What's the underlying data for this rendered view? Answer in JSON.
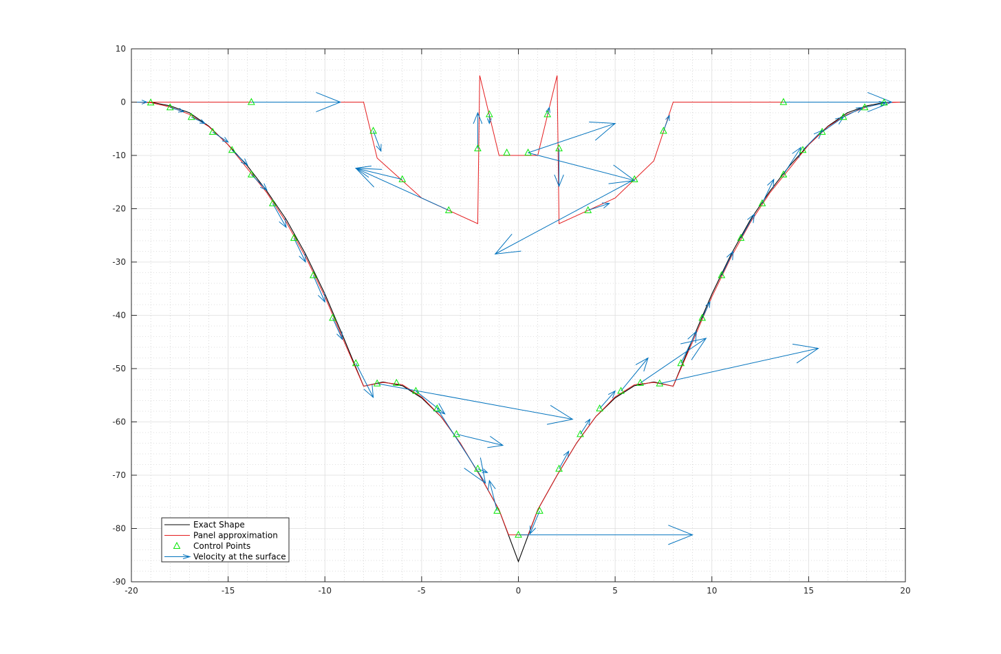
{
  "chart_data": {
    "type": "line",
    "title": "",
    "xlabel": "",
    "ylabel": "",
    "xlim": [
      -20,
      20
    ],
    "ylim": [
      -90,
      10
    ],
    "xticks": [
      -20,
      -15,
      -10,
      -5,
      0,
      5,
      10,
      15,
      20
    ],
    "yticks": [
      10,
      0,
      -10,
      -20,
      -30,
      -40,
      -50,
      -60,
      -70,
      -80,
      -90
    ],
    "grid": true,
    "minor_grid": true,
    "legend_position": "bottom-left",
    "colors": {
      "exact": "#000000",
      "panel": "#e41a1c",
      "control": "#00e600",
      "velocity": "#0072bd",
      "grid_major": "#dcdcdc",
      "grid_minor": "#bdbdbd"
    },
    "series": [
      {
        "name": "Exact Shape",
        "points": [
          [
            -20,
            0
          ],
          [
            -19,
            0
          ],
          [
            -18,
            -0.7
          ],
          [
            -17,
            -2
          ],
          [
            -16,
            -4.5
          ],
          [
            -15,
            -8
          ],
          [
            -14,
            -12
          ],
          [
            -13,
            -16.7
          ],
          [
            -12,
            -22
          ],
          [
            -11,
            -28.5
          ],
          [
            -10,
            -36
          ],
          [
            -9,
            -44.5
          ],
          [
            -8,
            -53.3
          ],
          [
            -7,
            -52.5
          ],
          [
            -6,
            -53.2
          ],
          [
            -5,
            -55.5
          ],
          [
            -4,
            -59
          ],
          [
            -3,
            -64
          ],
          [
            -2,
            -70
          ],
          [
            -1,
            -76.5
          ],
          [
            0,
            -86.2
          ],
          [
            1,
            -76.5
          ],
          [
            2,
            -70
          ],
          [
            3,
            -64
          ],
          [
            4,
            -59
          ],
          [
            5,
            -55.5
          ],
          [
            6,
            -53.2
          ],
          [
            7,
            -52.5
          ],
          [
            8,
            -53.3
          ],
          [
            9,
            -44.5
          ],
          [
            10,
            -36
          ],
          [
            11,
            -28.5
          ],
          [
            12,
            -22
          ],
          [
            13,
            -16.7
          ],
          [
            14,
            -12
          ],
          [
            15,
            -8
          ],
          [
            16,
            -4.5
          ],
          [
            17,
            -2
          ],
          [
            18,
            -0.7
          ],
          [
            19,
            0
          ],
          [
            20,
            0
          ]
        ]
      },
      {
        "name": "Panel approximation",
        "points": [
          [
            -19.8,
            0
          ],
          [
            -8,
            0
          ],
          [
            -7.3,
            -10.5
          ],
          [
            -5,
            -18
          ],
          [
            -2.1,
            -22.8
          ],
          [
            -2,
            5
          ],
          [
            -1,
            -10
          ],
          [
            1,
            -10
          ],
          [
            2,
            5
          ],
          [
            2.1,
            -22.8
          ],
          [
            5,
            -18
          ],
          [
            7,
            -11
          ],
          [
            8,
            0
          ],
          [
            19.8,
            0
          ]
        ],
        "bottom_points": [
          [
            -19.8,
            0
          ],
          [
            -19,
            -0.1
          ],
          [
            -18,
            -0.9
          ],
          [
            -17,
            -2.3
          ],
          [
            -16,
            -4.6
          ],
          [
            -15,
            -8
          ],
          [
            -14,
            -12.5
          ],
          [
            -13,
            -17
          ],
          [
            -12,
            -22.5
          ],
          [
            -11,
            -29
          ],
          [
            -10,
            -36.5
          ],
          [
            -9,
            -45
          ],
          [
            -8,
            -53.3
          ],
          [
            -7,
            -52.6
          ],
          [
            -6,
            -53
          ],
          [
            -5,
            -55.3
          ],
          [
            -4,
            -59
          ],
          [
            -3,
            -64
          ],
          [
            -2,
            -70
          ],
          [
            -1,
            -76.5
          ],
          [
            -0.5,
            -81.2
          ],
          [
            0.5,
            -81.2
          ],
          [
            1,
            -76.5
          ],
          [
            2,
            -70
          ],
          [
            3,
            -64
          ],
          [
            4,
            -59
          ],
          [
            5,
            -55.3
          ],
          [
            6,
            -53
          ],
          [
            7,
            -52.6
          ],
          [
            8,
            -53.3
          ],
          [
            9,
            -45
          ],
          [
            10,
            -36.5
          ],
          [
            11,
            -29
          ],
          [
            12,
            -22.5
          ],
          [
            13,
            -17
          ],
          [
            14,
            -12.5
          ],
          [
            15,
            -8
          ],
          [
            16,
            -4.6
          ],
          [
            17,
            -2.3
          ],
          [
            18,
            -0.9
          ],
          [
            19,
            -0.1
          ],
          [
            19.8,
            0
          ]
        ]
      },
      {
        "name": "Control Points",
        "points": [
          [
            -19,
            -0.1
          ],
          [
            -18,
            -1
          ],
          [
            -16.9,
            -2.8
          ],
          [
            -15.8,
            -5.6
          ],
          [
            -14.8,
            -9
          ],
          [
            -13.8,
            -13.6
          ],
          [
            -12.7,
            -19
          ],
          [
            -11.6,
            -25.5
          ],
          [
            -10.6,
            -32.5
          ],
          [
            -9.6,
            -40.5
          ],
          [
            -8.4,
            -49
          ],
          [
            -7.5,
            -5.4
          ],
          [
            -7.3,
            -52.8
          ],
          [
            -6.3,
            -52.7
          ],
          [
            -6,
            -14.5
          ],
          [
            -5.3,
            -54.2
          ],
          [
            -4.2,
            -57.5
          ],
          [
            -3.6,
            -20.3
          ],
          [
            -3.2,
            -62.3
          ],
          [
            -2.1,
            -68.8
          ],
          [
            -2.1,
            -8.7
          ],
          [
            -1.5,
            -2.3
          ],
          [
            -1.1,
            -76.7
          ],
          [
            -0.6,
            -9.5
          ],
          [
            0,
            -81.2
          ],
          [
            0.5,
            -9.5
          ],
          [
            1.1,
            -76.7
          ],
          [
            1.5,
            -2.3
          ],
          [
            2.1,
            -68.8
          ],
          [
            2.1,
            -8.7
          ],
          [
            3.2,
            -62.3
          ],
          [
            3.6,
            -20.3
          ],
          [
            4.2,
            -57.5
          ],
          [
            5.3,
            -54.2
          ],
          [
            6,
            -14.5
          ],
          [
            6.3,
            -52.7
          ],
          [
            7.3,
            -52.8
          ],
          [
            7.5,
            -5.4
          ],
          [
            8.4,
            -49
          ],
          [
            9.5,
            -40.5
          ],
          [
            10.5,
            -32.5
          ],
          [
            11.5,
            -25.5
          ],
          [
            12.6,
            -19
          ],
          [
            13.7,
            -13.6
          ],
          [
            13.7,
            0
          ],
          [
            14.7,
            -9
          ],
          [
            15.7,
            -5.6
          ],
          [
            16.8,
            -2.8
          ],
          [
            17.9,
            -1
          ],
          [
            18.9,
            -0.1
          ],
          [
            -13.8,
            0
          ]
        ]
      },
      {
        "name": "Velocity at the surface",
        "vectors": [
          [
            -19.8,
            0,
            -19.2,
            0
          ],
          [
            -13.8,
            0,
            -9.2,
            0
          ],
          [
            -18,
            -1,
            -17.3,
            -1.8
          ],
          [
            -16.9,
            -2.8,
            -16.2,
            -4
          ],
          [
            -15.8,
            -5.6,
            -15,
            -7.5
          ],
          [
            -14.8,
            -9,
            -14,
            -11.8
          ],
          [
            -13.8,
            -13.6,
            -13,
            -16.5
          ],
          [
            -12.7,
            -19,
            -12,
            -23.5
          ],
          [
            -11.6,
            -25.5,
            -11,
            -30
          ],
          [
            -10.6,
            -32.5,
            -10,
            -37.5
          ],
          [
            -9.6,
            -40.5,
            -9.1,
            -44.5
          ],
          [
            -8.4,
            -49,
            -7.5,
            -55.4
          ],
          [
            -7.3,
            -52.8,
            2.8,
            -59.5
          ],
          [
            -5.3,
            -54.2,
            -3.8,
            -58.5
          ],
          [
            -4.2,
            -57.5,
            -1.7,
            -71.5
          ],
          [
            -3.2,
            -62.3,
            -0.8,
            -64.4
          ],
          [
            -2.1,
            -68.8,
            -1.6,
            -69.5
          ],
          [
            -1.1,
            -76.7,
            -1.5,
            -71
          ],
          [
            0,
            -81.2,
            9,
            -81.2
          ],
          [
            1.1,
            -76.7,
            0.6,
            -81
          ],
          [
            2.1,
            -68.8,
            2.6,
            -65.5
          ],
          [
            3.2,
            -62.3,
            3.7,
            -59.5
          ],
          [
            4.2,
            -57.5,
            5,
            -54.2
          ],
          [
            5.3,
            -54.2,
            6.7,
            -48
          ],
          [
            6.3,
            -52.7,
            9.7,
            -44.3
          ],
          [
            7.3,
            -52.8,
            15.5,
            -46.2
          ],
          [
            8.4,
            -49,
            9.2,
            -43
          ],
          [
            9.5,
            -40.5,
            9.9,
            -37.5
          ],
          [
            10.5,
            -32.5,
            11.1,
            -28
          ],
          [
            11.5,
            -25.5,
            12.2,
            -21
          ],
          [
            12.6,
            -19,
            13.2,
            -14.5
          ],
          [
            13.7,
            -13.6,
            14.6,
            -8.5
          ],
          [
            14.7,
            -9,
            15.7,
            -5.3
          ],
          [
            15.7,
            -5.6,
            16.8,
            -2.8
          ],
          [
            16.8,
            -2.8,
            17.8,
            -1
          ],
          [
            17.9,
            -1,
            19,
            -0.1
          ],
          [
            13.7,
            0,
            19.3,
            0
          ],
          [
            -7.5,
            -5.4,
            -7.1,
            -9.2
          ],
          [
            -6,
            -14.5,
            -8.4,
            -12.4
          ],
          [
            -3.6,
            -20.3,
            -8.4,
            -12.4
          ],
          [
            -2.1,
            -8.7,
            -2.1,
            -2
          ],
          [
            -1.5,
            -2.3,
            -1.5,
            -4
          ],
          [
            0.5,
            -9.5,
            5,
            -4
          ],
          [
            0.5,
            -9.5,
            6,
            -14.7
          ],
          [
            2.1,
            -8.7,
            2.1,
            -15.8
          ],
          [
            1.5,
            -2.3,
            1.6,
            -1
          ],
          [
            6,
            -14.5,
            -1.2,
            -28.5
          ],
          [
            3.6,
            -20.3,
            4.7,
            -19
          ],
          [
            7.5,
            -5.4,
            7.8,
            -2.5
          ]
        ]
      }
    ],
    "legend": [
      "Exact Shape",
      "Panel approximation",
      "Control Points",
      "Velocity at the surface"
    ]
  }
}
